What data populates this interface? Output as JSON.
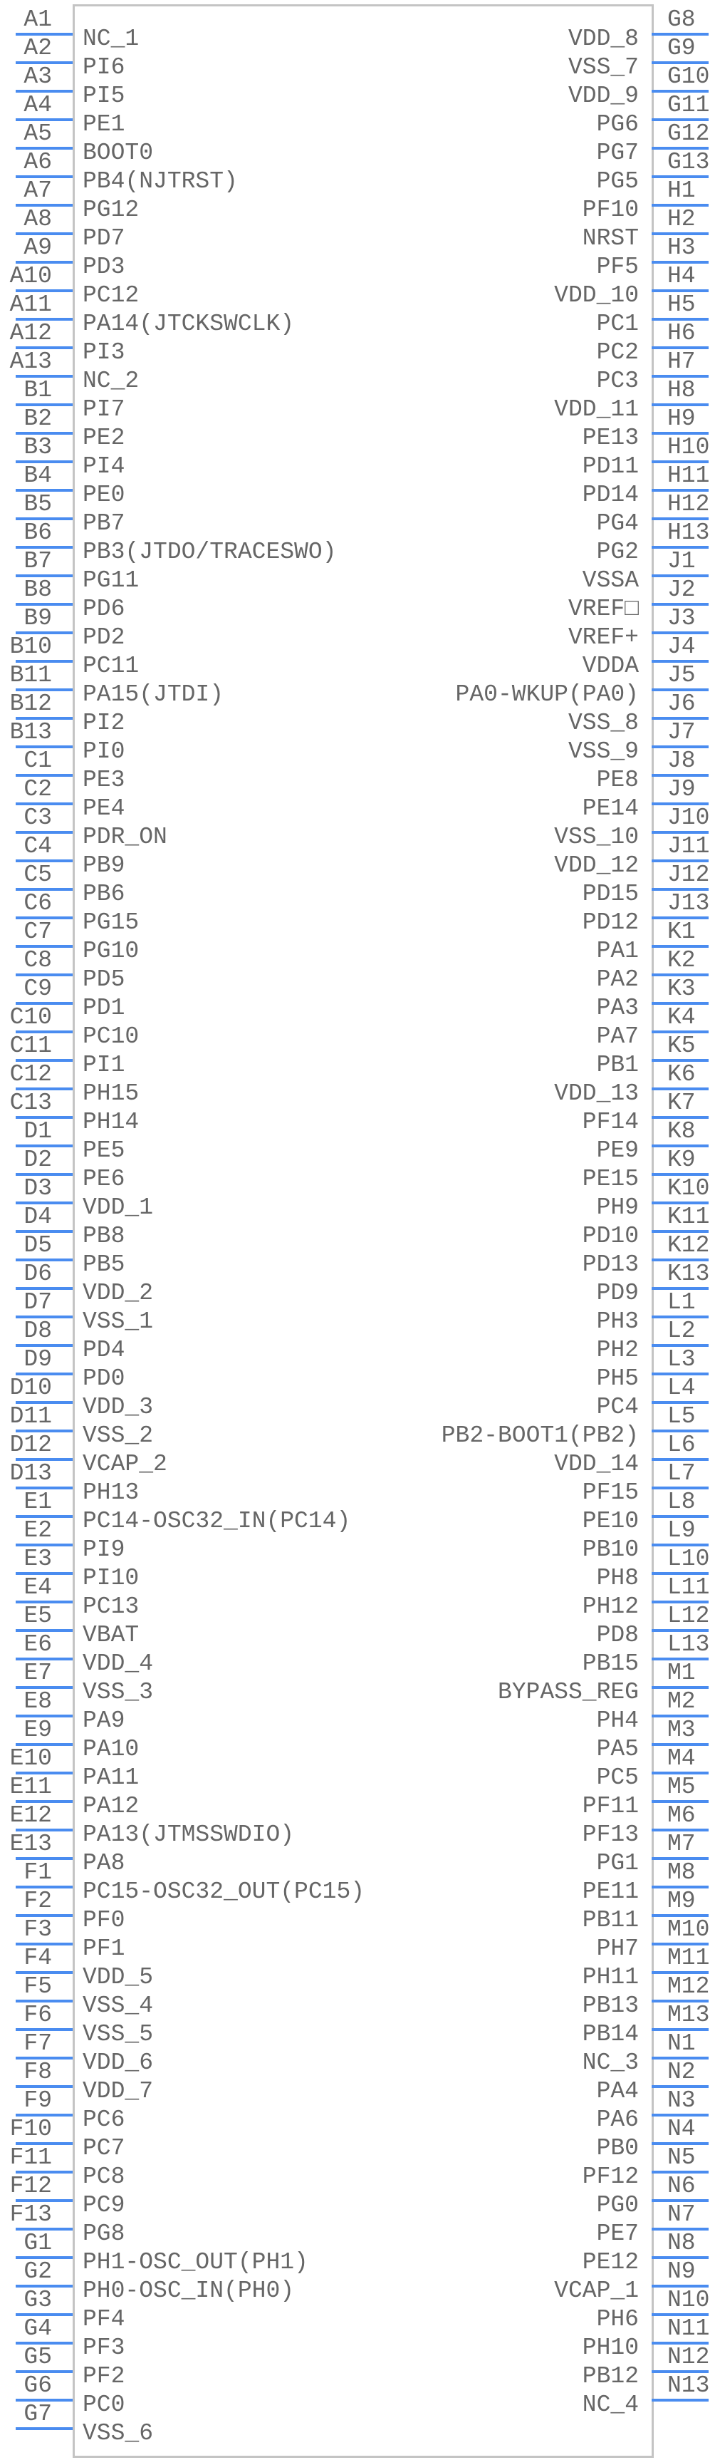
{
  "colors": {
    "pin_line": "#4a8cf0",
    "body_border": "#c4c4c4",
    "text": "#666666"
  },
  "left_pins": [
    {
      "number": "A1",
      "name": "NC_1"
    },
    {
      "number": "A2",
      "name": "PI6"
    },
    {
      "number": "A3",
      "name": "PI5"
    },
    {
      "number": "A4",
      "name": "PE1"
    },
    {
      "number": "A5",
      "name": "BOOT0"
    },
    {
      "number": "A6",
      "name": "PB4(NJTRST)"
    },
    {
      "number": "A7",
      "name": "PG12"
    },
    {
      "number": "A8",
      "name": "PD7"
    },
    {
      "number": "A9",
      "name": "PD3"
    },
    {
      "number": "A10",
      "name": "PC12"
    },
    {
      "number": "A11",
      "name": "PA14(JTCKSWCLK)"
    },
    {
      "number": "A12",
      "name": "PI3"
    },
    {
      "number": "A13",
      "name": "NC_2"
    },
    {
      "number": "B1",
      "name": "PI7"
    },
    {
      "number": "B2",
      "name": "PE2"
    },
    {
      "number": "B3",
      "name": "PI4"
    },
    {
      "number": "B4",
      "name": "PE0"
    },
    {
      "number": "B5",
      "name": "PB7"
    },
    {
      "number": "B6",
      "name": "PB3(JTDO/TRACESWO)"
    },
    {
      "number": "B7",
      "name": "PG11"
    },
    {
      "number": "B8",
      "name": "PD6"
    },
    {
      "number": "B9",
      "name": "PD2"
    },
    {
      "number": "B10",
      "name": "PC11"
    },
    {
      "number": "B11",
      "name": "PA15(JTDI)"
    },
    {
      "number": "B12",
      "name": "PI2"
    },
    {
      "number": "B13",
      "name": "PI0"
    },
    {
      "number": "C1",
      "name": "PE3"
    },
    {
      "number": "C2",
      "name": "PE4"
    },
    {
      "number": "C3",
      "name": "PDR_ON"
    },
    {
      "number": "C4",
      "name": "PB9"
    },
    {
      "number": "C5",
      "name": "PB6"
    },
    {
      "number": "C6",
      "name": "PG15"
    },
    {
      "number": "C7",
      "name": "PG10"
    },
    {
      "number": "C8",
      "name": "PD5"
    },
    {
      "number": "C9",
      "name": "PD1"
    },
    {
      "number": "C10",
      "name": "PC10"
    },
    {
      "number": "C11",
      "name": "PI1"
    },
    {
      "number": "C12",
      "name": "PH15"
    },
    {
      "number": "C13",
      "name": "PH14"
    },
    {
      "number": "D1",
      "name": "PE5"
    },
    {
      "number": "D2",
      "name": "PE6"
    },
    {
      "number": "D3",
      "name": "VDD_1"
    },
    {
      "number": "D4",
      "name": "PB8"
    },
    {
      "number": "D5",
      "name": "PB5"
    },
    {
      "number": "D6",
      "name": "VDD_2"
    },
    {
      "number": "D7",
      "name": "VSS_1"
    },
    {
      "number": "D8",
      "name": "PD4"
    },
    {
      "number": "D9",
      "name": "PD0"
    },
    {
      "number": "D10",
      "name": "VDD_3"
    },
    {
      "number": "D11",
      "name": "VSS_2"
    },
    {
      "number": "D12",
      "name": "VCAP_2"
    },
    {
      "number": "D13",
      "name": "PH13"
    },
    {
      "number": "E1",
      "name": "PC14-OSC32_IN(PC14)"
    },
    {
      "number": "E2",
      "name": "PI9"
    },
    {
      "number": "E3",
      "name": "PI10"
    },
    {
      "number": "E4",
      "name": "PC13"
    },
    {
      "number": "E5",
      "name": "VBAT"
    },
    {
      "number": "E6",
      "name": "VDD_4"
    },
    {
      "number": "E7",
      "name": "VSS_3"
    },
    {
      "number": "E8",
      "name": "PA9"
    },
    {
      "number": "E9",
      "name": "PA10"
    },
    {
      "number": "E10",
      "name": "PA11"
    },
    {
      "number": "E11",
      "name": "PA12"
    },
    {
      "number": "E12",
      "name": "PA13(JTMSSWDIO)"
    },
    {
      "number": "E13",
      "name": "PA8"
    },
    {
      "number": "F1",
      "name": "PC15-OSC32_OUT(PC15)"
    },
    {
      "number": "F2",
      "name": "PF0"
    },
    {
      "number": "F3",
      "name": "PF1"
    },
    {
      "number": "F4",
      "name": "VDD_5"
    },
    {
      "number": "F5",
      "name": "VSS_4"
    },
    {
      "number": "F6",
      "name": "VSS_5"
    },
    {
      "number": "F7",
      "name": "VDD_6"
    },
    {
      "number": "F8",
      "name": "VDD_7"
    },
    {
      "number": "F9",
      "name": "PC6"
    },
    {
      "number": "F10",
      "name": "PC7"
    },
    {
      "number": "F11",
      "name": "PC8"
    },
    {
      "number": "F12",
      "name": "PC9"
    },
    {
      "number": "F13",
      "name": "PG8"
    },
    {
      "number": "G1",
      "name": "PH1-OSC_OUT(PH1)"
    },
    {
      "number": "G2",
      "name": "PH0-OSC_IN(PH0)"
    },
    {
      "number": "G3",
      "name": "PF4"
    },
    {
      "number": "G4",
      "name": "PF3"
    },
    {
      "number": "G5",
      "name": "PF2"
    },
    {
      "number": "G6",
      "name": "PC0"
    },
    {
      "number": "G7",
      "name": "VSS_6"
    }
  ],
  "right_pins": [
    {
      "number": "G8",
      "name": "VDD_8"
    },
    {
      "number": "G9",
      "name": "VSS_7"
    },
    {
      "number": "G10",
      "name": "VDD_9"
    },
    {
      "number": "G11",
      "name": "PG6"
    },
    {
      "number": "G12",
      "name": "PG7"
    },
    {
      "number": "G13",
      "name": "PG5"
    },
    {
      "number": "H1",
      "name": "PF10"
    },
    {
      "number": "H2",
      "name": "NRST"
    },
    {
      "number": "H3",
      "name": "PF5"
    },
    {
      "number": "H4",
      "name": "VDD_10"
    },
    {
      "number": "H5",
      "name": "PC1"
    },
    {
      "number": "H6",
      "name": "PC2"
    },
    {
      "number": "H7",
      "name": "PC3"
    },
    {
      "number": "H8",
      "name": "VDD_11"
    },
    {
      "number": "H9",
      "name": "PE13"
    },
    {
      "number": "H10",
      "name": "PD11"
    },
    {
      "number": "H11",
      "name": "PD14"
    },
    {
      "number": "H12",
      "name": "PG4"
    },
    {
      "number": "H13",
      "name": "PG2"
    },
    {
      "number": "J1",
      "name": "VSSA"
    },
    {
      "number": "J2",
      "name": "VREF□"
    },
    {
      "number": "J3",
      "name": "VREF+"
    },
    {
      "number": "J4",
      "name": "VDDA"
    },
    {
      "number": "J5",
      "name": "PA0-WKUP(PA0)"
    },
    {
      "number": "J6",
      "name": "VSS_8"
    },
    {
      "number": "J7",
      "name": "VSS_9"
    },
    {
      "number": "J8",
      "name": "PE8"
    },
    {
      "number": "J9",
      "name": "PE14"
    },
    {
      "number": "J10",
      "name": "VSS_10"
    },
    {
      "number": "J11",
      "name": "VDD_12"
    },
    {
      "number": "J12",
      "name": "PD15"
    },
    {
      "number": "J13",
      "name": "PD12"
    },
    {
      "number": "K1",
      "name": "PA1"
    },
    {
      "number": "K2",
      "name": "PA2"
    },
    {
      "number": "K3",
      "name": "PA3"
    },
    {
      "number": "K4",
      "name": "PA7"
    },
    {
      "number": "K5",
      "name": "PB1"
    },
    {
      "number": "K6",
      "name": "VDD_13"
    },
    {
      "number": "K7",
      "name": "PF14"
    },
    {
      "number": "K8",
      "name": "PE9"
    },
    {
      "number": "K9",
      "name": "PE15"
    },
    {
      "number": "K10",
      "name": "PH9"
    },
    {
      "number": "K11",
      "name": "PD10"
    },
    {
      "number": "K12",
      "name": "PD13"
    },
    {
      "number": "K13",
      "name": "PD9"
    },
    {
      "number": "L1",
      "name": "PH3"
    },
    {
      "number": "L2",
      "name": "PH2"
    },
    {
      "number": "L3",
      "name": "PH5"
    },
    {
      "number": "L4",
      "name": "PC4"
    },
    {
      "number": "L5",
      "name": "PB2-BOOT1(PB2)"
    },
    {
      "number": "L6",
      "name": "VDD_14"
    },
    {
      "number": "L7",
      "name": "PF15"
    },
    {
      "number": "L8",
      "name": "PE10"
    },
    {
      "number": "L9",
      "name": "PB10"
    },
    {
      "number": "L10",
      "name": "PH8"
    },
    {
      "number": "L11",
      "name": "PH12"
    },
    {
      "number": "L12",
      "name": "PD8"
    },
    {
      "number": "L13",
      "name": "PB15"
    },
    {
      "number": "M1",
      "name": "BYPASS_REG"
    },
    {
      "number": "M2",
      "name": "PH4"
    },
    {
      "number": "M3",
      "name": "PA5"
    },
    {
      "number": "M4",
      "name": "PC5"
    },
    {
      "number": "M5",
      "name": "PF11"
    },
    {
      "number": "M6",
      "name": "PF13"
    },
    {
      "number": "M7",
      "name": "PG1"
    },
    {
      "number": "M8",
      "name": "PE11"
    },
    {
      "number": "M9",
      "name": "PB11"
    },
    {
      "number": "M10",
      "name": "PH7"
    },
    {
      "number": "M11",
      "name": "PH11"
    },
    {
      "number": "M12",
      "name": "PB13"
    },
    {
      "number": "M13",
      "name": "PB14"
    },
    {
      "number": "N1",
      "name": "NC_3"
    },
    {
      "number": "N2",
      "name": "PA4"
    },
    {
      "number": "N3",
      "name": "PA6"
    },
    {
      "number": "N4",
      "name": "PB0"
    },
    {
      "number": "N5",
      "name": "PF12"
    },
    {
      "number": "N6",
      "name": "PG0"
    },
    {
      "number": "N7",
      "name": "PE7"
    },
    {
      "number": "N8",
      "name": "PE12"
    },
    {
      "number": "N9",
      "name": "VCAP_1"
    },
    {
      "number": "N10",
      "name": "PH6"
    },
    {
      "number": "N11",
      "name": "PH10"
    },
    {
      "number": "N12",
      "name": "PB12"
    },
    {
      "number": "N13",
      "name": "NC_4"
    }
  ]
}
